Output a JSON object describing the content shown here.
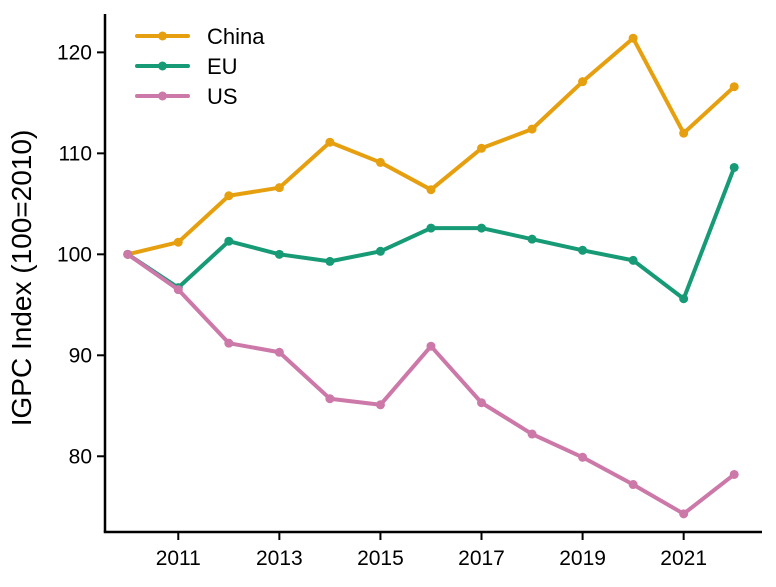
{
  "chart_data": {
    "type": "line",
    "title": "",
    "xlabel": "",
    "ylabel": "IGPC Index (100=2010)",
    "x": [
      2010,
      2011,
      2012,
      2013,
      2014,
      2015,
      2016,
      2017,
      2018,
      2019,
      2020,
      2021,
      2022
    ],
    "x_ticks": [
      "2011",
      "2013",
      "2015",
      "2017",
      "2019",
      "2021"
    ],
    "y_ticks": [
      "80",
      "90",
      "100",
      "110",
      "120"
    ],
    "xlim": [
      2009.55,
      2022.55
    ],
    "ylim": [
      72.5,
      123.8
    ],
    "grid": false,
    "legend_position": "top-left",
    "series": [
      {
        "name": "China",
        "color": "#E6A00F",
        "values": [
          100,
          101.2,
          105.8,
          106.6,
          111.1,
          109.1,
          106.4,
          110.5,
          112.4,
          117.1,
          121.4,
          112.0,
          116.6
        ]
      },
      {
        "name": "EU",
        "color": "#179A76",
        "values": [
          100,
          96.7,
          101.3,
          100.0,
          99.3,
          100.3,
          102.6,
          102.6,
          101.5,
          100.4,
          99.4,
          95.6,
          108.6
        ]
      },
      {
        "name": "US",
        "color": "#CC78A8",
        "values": [
          100,
          96.5,
          91.2,
          90.3,
          85.7,
          85.1,
          90.9,
          85.3,
          82.2,
          79.9,
          77.2,
          74.3,
          78.2
        ]
      }
    ]
  }
}
